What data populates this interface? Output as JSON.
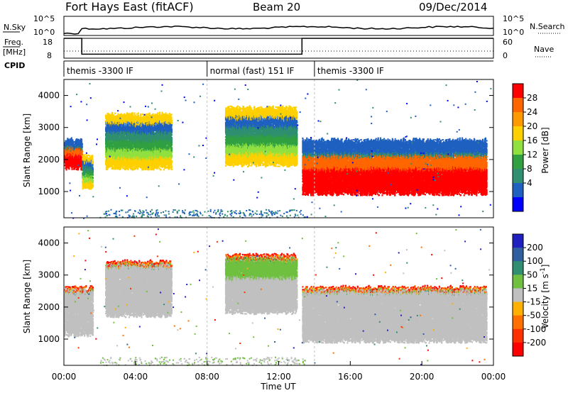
{
  "header": {
    "station": "Fort Hays East (fitACF)",
    "beam": "Beam 20",
    "date": "09/Dec/2014"
  },
  "nsky_panel": {
    "left_label": "N.Sky",
    "right_label": "N.Search",
    "left_ticks": [
      "10^5",
      "10^0"
    ],
    "right_ticks": [
      "10^5",
      "10^0"
    ]
  },
  "freq_panel": {
    "left_label_line1": "Freq.",
    "left_label_line2": "[MHz]",
    "right_label": "Nave",
    "left_ticks": [
      "18",
      "8"
    ],
    "right_ticks": [
      "60",
      "0"
    ],
    "freq_steps": [
      {
        "t_start": 0.0,
        "t_end": 1.0,
        "value": 18
      },
      {
        "t_start": 1.0,
        "t_end": 13.3,
        "value": 10
      },
      {
        "t_start": 13.3,
        "t_end": 24.0,
        "value": 18
      }
    ]
  },
  "cpid": {
    "label": "CPID",
    "segments": [
      {
        "t_start": 0.0,
        "t_end": 8.0,
        "name": "themis -3300 IF"
      },
      {
        "t_start": 8.0,
        "t_end": 14.0,
        "name": "normal (fast) 151 IF"
      },
      {
        "t_start": 14.0,
        "t_end": 24.0,
        "name": "themis -3300 IF"
      }
    ]
  },
  "chart_data": [
    {
      "type": "heatmap",
      "panel": "power",
      "ylabel": "Slant Range [km]",
      "xlabel": "",
      "xlim": [
        0,
        24
      ],
      "ylim": [
        180,
        4500
      ],
      "yticks": [
        "1000",
        "2000",
        "3000",
        "4000"
      ],
      "colorbar": {
        "label": "Power [dB]",
        "ticks": [
          "28",
          "24",
          "20",
          "16",
          "12",
          "8",
          "4"
        ],
        "colors": [
          "#ff0000",
          "#ff6600",
          "#ff9900",
          "#ffd000",
          "#90e040",
          "#30a040",
          "#2f8f70",
          "#1f60c0",
          "#0000ff"
        ]
      },
      "echo_regions": [
        {
          "t_start": 0.0,
          "t_end": 1.0,
          "r_low": 1800,
          "r_high": 2600,
          "power_db": 26
        },
        {
          "t_start": 1.0,
          "t_end": 1.6,
          "r_low": 1200,
          "r_high": 2100,
          "power_db": 18
        },
        {
          "t_start": 2.3,
          "t_end": 6.0,
          "r_low": 1800,
          "r_high": 3400,
          "power_db": 14
        },
        {
          "t_start": 9.0,
          "t_end": 13.0,
          "r_low": 1900,
          "r_high": 3600,
          "power_db": 16
        },
        {
          "t_start": 13.3,
          "t_end": 23.6,
          "r_low": 1000,
          "r_high": 2600,
          "power_db": 28
        }
      ]
    },
    {
      "type": "heatmap",
      "panel": "velocity",
      "ylabel": "Slant Range [km]",
      "xlabel": "Time UT",
      "xlim": [
        0,
        24
      ],
      "ylim": [
        180,
        4500
      ],
      "xticks": [
        "00:00",
        "04:00",
        "08:00",
        "12:00",
        "16:00",
        "20:00",
        "00:00"
      ],
      "yticks": [
        "1000",
        "2000",
        "3000",
        "4000"
      ],
      "colorbar": {
        "label": "Velocity [m s",
        "label_exp": "-1",
        "label_close": "]",
        "ticks": [
          "200",
          "100",
          "50",
          "15",
          "-15",
          "-50",
          "-100",
          "-200"
        ],
        "colors": [
          "#2020c0",
          "#2f5fa0",
          "#2f8f70",
          "#70c040",
          "#c0c0c0",
          "#ffb000",
          "#ff7000",
          "#ff3000",
          "#ff0000"
        ]
      },
      "echo_regions": [
        {
          "t_start": 0.0,
          "t_end": 1.6,
          "r_low": 1200,
          "r_high": 2600,
          "velocity": 0
        },
        {
          "t_start": 2.3,
          "t_end": 6.0,
          "r_low": 1800,
          "r_high": 3400,
          "velocity": 0
        },
        {
          "t_start": 9.0,
          "t_end": 13.0,
          "r_low": 1900,
          "r_high": 3600,
          "velocity": 20
        },
        {
          "t_start": 13.3,
          "t_end": 23.6,
          "r_low": 1000,
          "r_high": 2600,
          "velocity": 0
        }
      ]
    }
  ]
}
